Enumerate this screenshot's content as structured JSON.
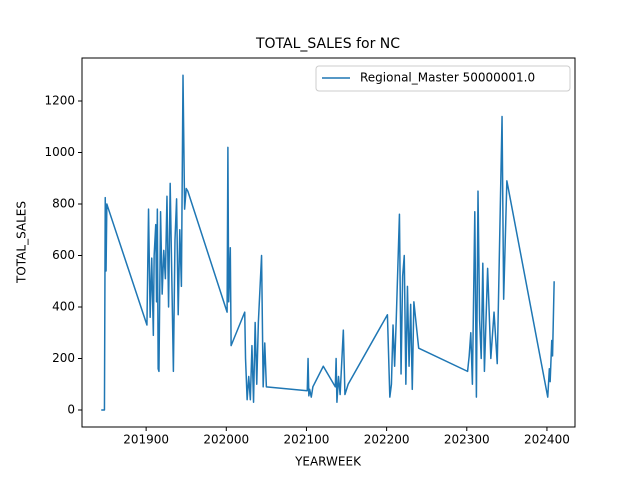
{
  "chart_data": {
    "type": "line",
    "title": "TOTAL_SALES for NC",
    "xlabel": "YEARWEEK",
    "ylabel": "TOTAL_SALES",
    "x": [
      201844,
      201845,
      201848,
      201849,
      201850,
      201851,
      201852,
      201901,
      201903,
      201905,
      201907,
      201909,
      201910,
      201912,
      201913,
      201914,
      201915,
      201916,
      201918,
      201920,
      201922,
      201924,
      201926,
      201928,
      201930,
      201932,
      201934,
      201936,
      201938,
      201940,
      201942,
      201944,
      201946,
      201948,
      201950,
      201952,
      202001,
      202002,
      202003,
      202005,
      202006,
      202023,
      202024,
      202026,
      202028,
      202030,
      202032,
      202034,
      202036,
      202038,
      202040,
      202044,
      202046,
      202048,
      202050,
      202101,
      202102,
      202103,
      202104,
      202106,
      202108,
      202121,
      202136,
      202137,
      202138,
      202140,
      202142,
      202146,
      202148,
      202152,
      202201,
      202204,
      202206,
      202208,
      202210,
      202212,
      202216,
      202218,
      202220,
      202222,
      202224,
      202226,
      202228,
      202230,
      202232,
      202234,
      202240,
      202301,
      202303,
      202305,
      202307,
      202310,
      202312,
      202314,
      202316,
      202318,
      202320,
      202322,
      202326,
      202330,
      202334,
      202338,
      202344,
      202346,
      202350,
      202401,
      202403,
      202404,
      202406,
      202407,
      202409
    ],
    "series": [
      {
        "name": "Regional_Master 50000001.0",
        "color": "#1f77b4",
        "values": [
          0,
          0,
          0,
          825,
          540,
          800,
          790,
          330,
          780,
          360,
          590,
          290,
          600,
          720,
          420,
          780,
          160,
          150,
          770,
          450,
          620,
          510,
          830,
          400,
          880,
          520,
          150,
          660,
          820,
          370,
          700,
          480,
          1300,
          780,
          860,
          850,
          380,
          1020,
          420,
          630,
          250,
          380,
          200,
          40,
          130,
          40,
          250,
          30,
          340,
          100,
          340,
          600,
          90,
          260,
          90,
          75,
          200,
          55,
          80,
          50,
          90,
          170,
          90,
          200,
          30,
          130,
          60,
          310,
          60,
          100,
          370,
          50,
          100,
          330,
          170,
          350,
          760,
          140,
          520,
          600,
          100,
          480,
          170,
          410,
          80,
          420,
          240,
          150,
          210,
          300,
          100,
          770,
          50,
          850,
          350,
          200,
          570,
          150,
          550,
          200,
          380,
          180,
          1140,
          430,
          890,
          50,
          160,
          110,
          270,
          210,
          500
        ]
      }
    ],
    "xlim": [
      201820,
      202435
    ],
    "ylim": [
      -66,
      1367
    ],
    "xticks": [
      201900,
      202000,
      202100,
      202200,
      202300,
      202400
    ],
    "yticks": [
      0,
      200,
      400,
      600,
      800,
      1000,
      1200
    ],
    "legend": "upper right"
  }
}
